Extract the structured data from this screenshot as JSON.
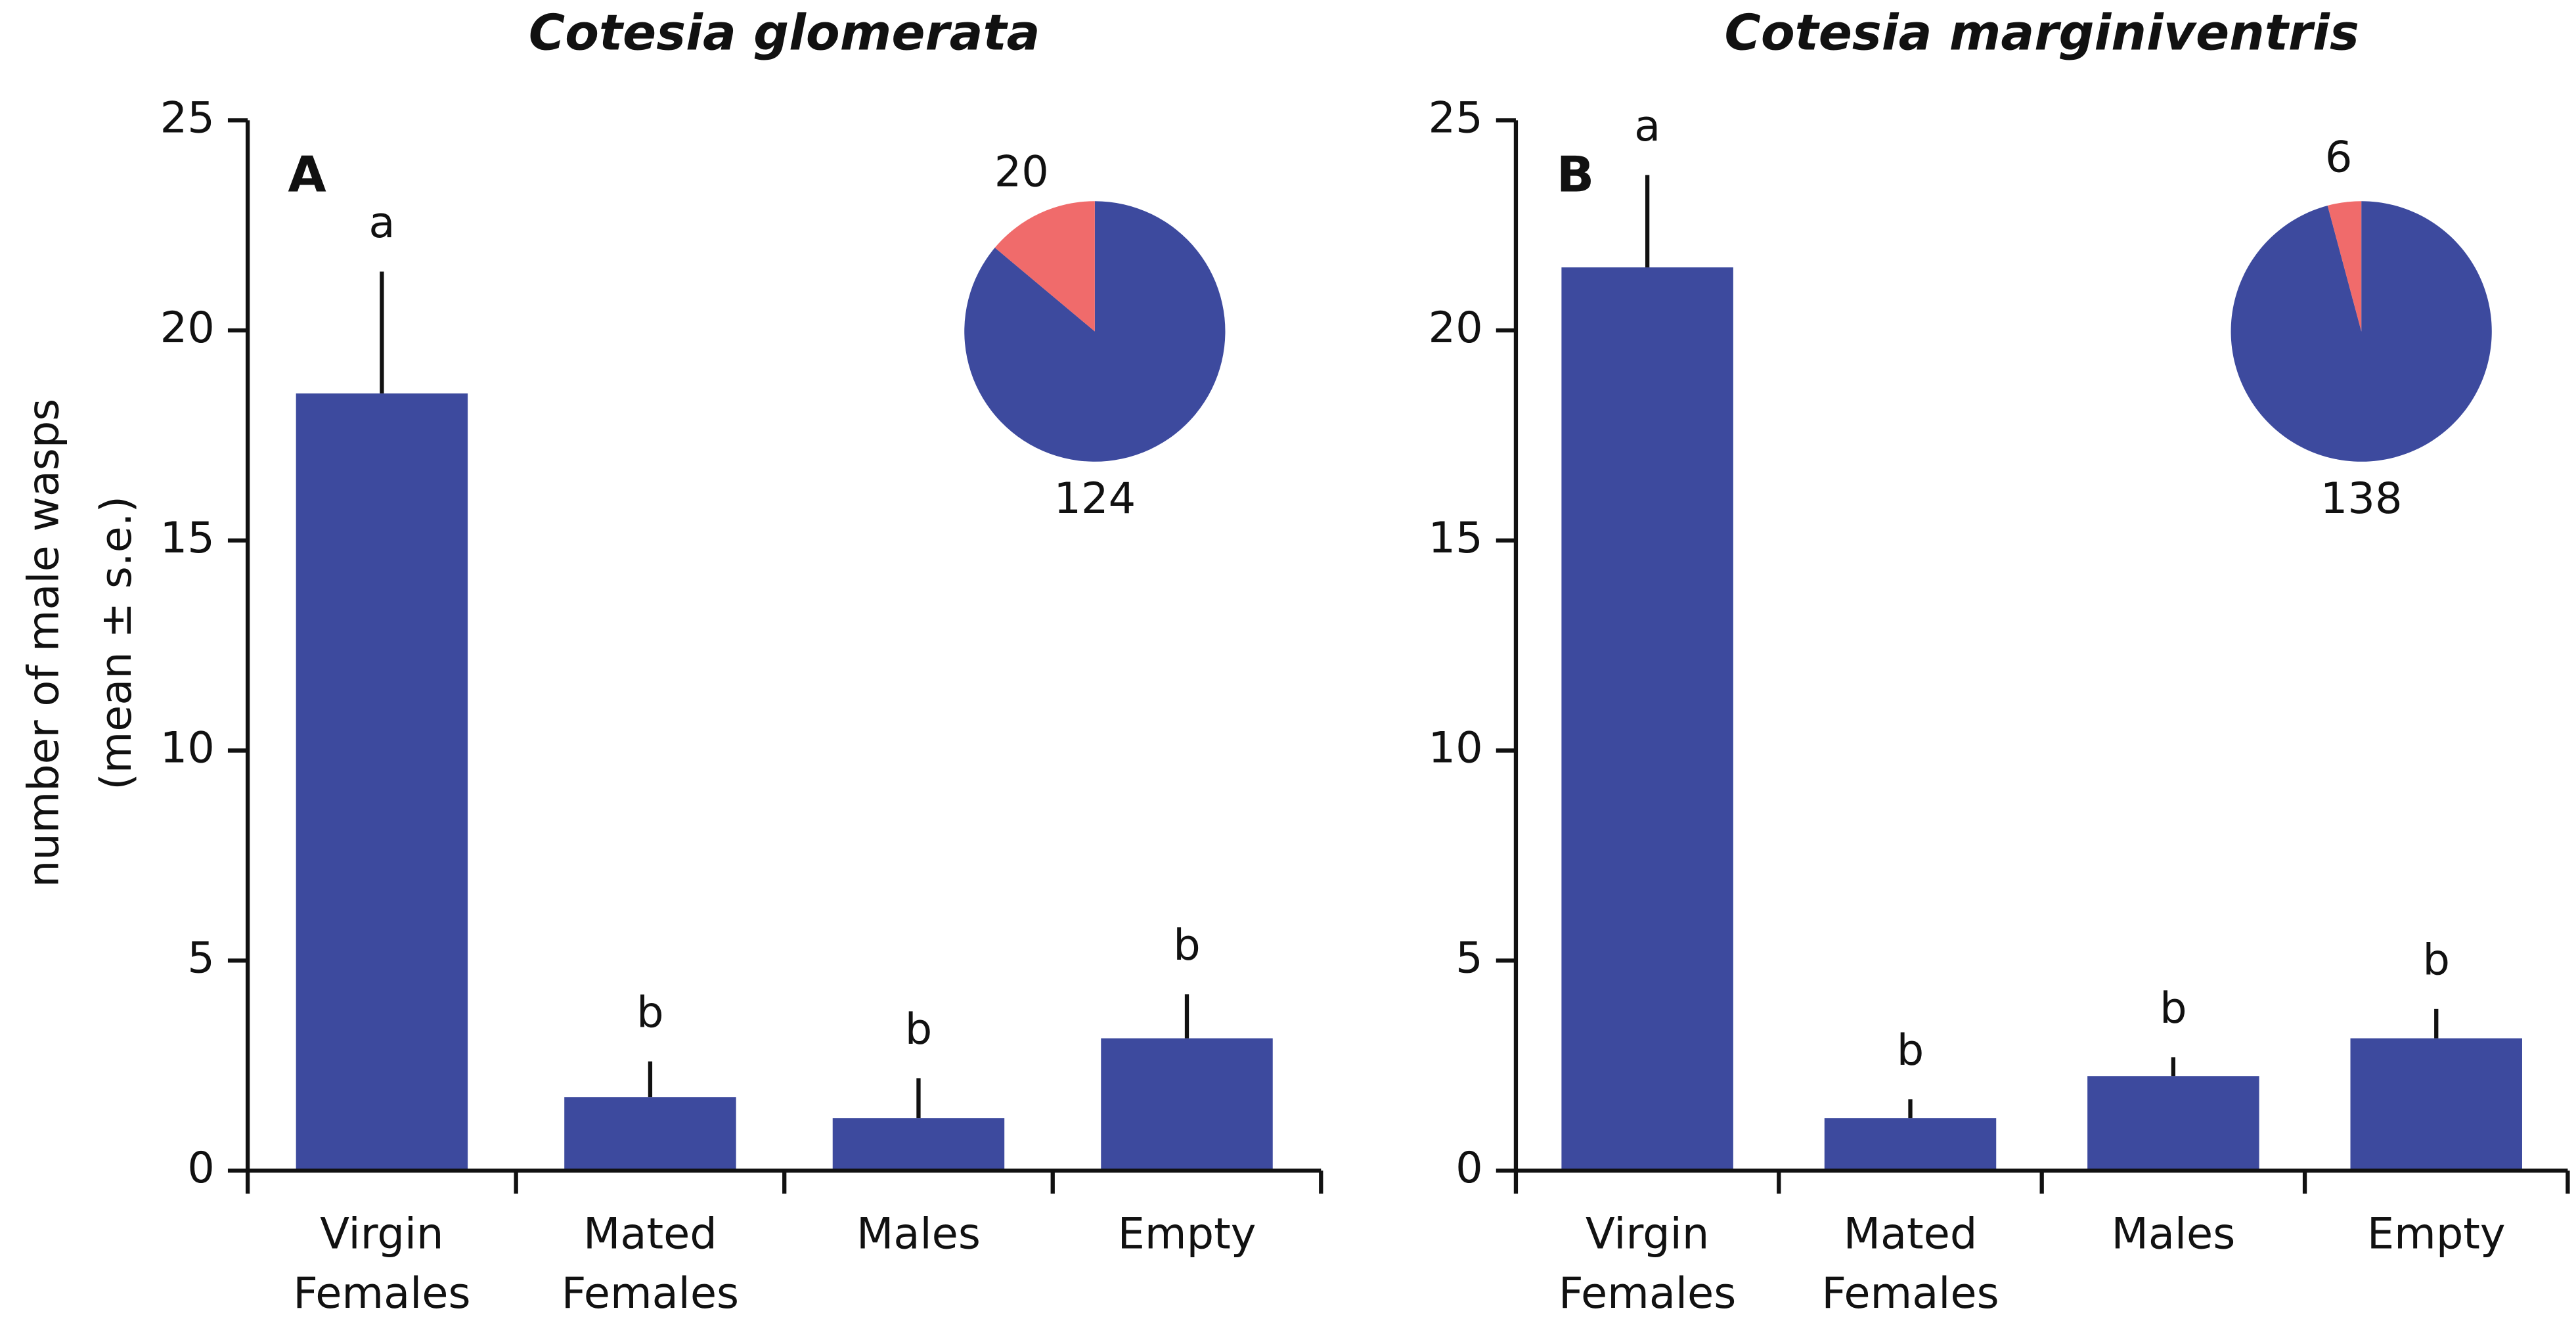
{
  "y_label": [
    "number of male wasps",
    "(mean ± s.e.)"
  ],
  "chart_data": [
    {
      "type": "bar",
      "title": "Cotesia glomerata",
      "panel": "A",
      "categories": [
        [
          "Virgin",
          "Females"
        ],
        [
          "Mated",
          "Females"
        ],
        [
          "Males"
        ],
        [
          "Empty"
        ]
      ],
      "values": [
        18.5,
        1.75,
        1.25,
        3.15
      ],
      "errors": [
        2.9,
        0.85,
        0.95,
        1.05
      ],
      "letters": [
        "a",
        "b",
        "b",
        "b"
      ],
      "color": "#3d4a9e",
      "ylim": [
        0,
        25
      ],
      "yticks": [
        0,
        5,
        10,
        15,
        20,
        25
      ],
      "inset": {
        "type": "pie",
        "values": [
          124,
          20
        ],
        "colors": [
          "#3d4a9e",
          "#f06b6b"
        ]
      }
    },
    {
      "type": "bar",
      "title": "Cotesia marginiventris",
      "panel": "B",
      "categories": [
        [
          "Virgin",
          "Females"
        ],
        [
          "Mated",
          "Females"
        ],
        [
          "Males"
        ],
        [
          "Empty"
        ]
      ],
      "values": [
        21.5,
        1.25,
        2.25,
        3.15
      ],
      "errors": [
        2.2,
        0.45,
        0.45,
        0.7
      ],
      "letters": [
        "a",
        "b",
        "b",
        "b"
      ],
      "color": "#3d4a9e",
      "ylim": [
        0,
        25
      ],
      "yticks": [
        0,
        5,
        10,
        15,
        20,
        25
      ],
      "inset": {
        "type": "pie",
        "values": [
          138,
          6
        ],
        "colors": [
          "#3d4a9e",
          "#f06b6b"
        ]
      }
    }
  ]
}
